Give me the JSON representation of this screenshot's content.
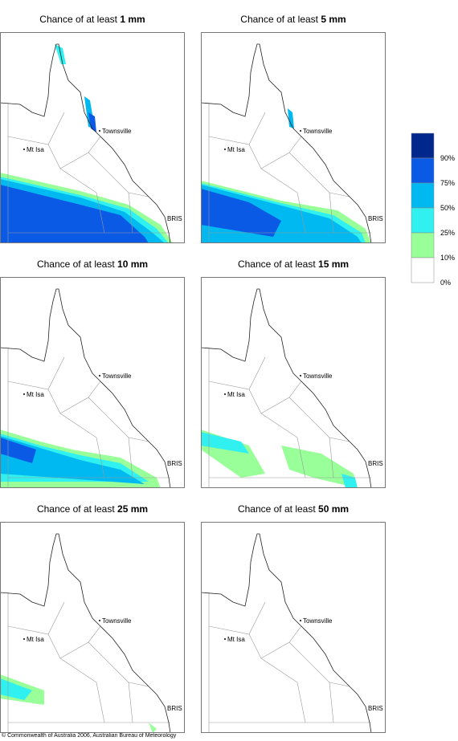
{
  "panels": [
    {
      "title": "Chance of at least",
      "amount": "1 mm"
    },
    {
      "title": "Chance of at least",
      "amount": "5 mm"
    },
    {
      "title": "Chance of at least",
      "amount": "10 mm"
    },
    {
      "title": "Chance of at least",
      "amount": "15 mm"
    },
    {
      "title": "Chance of at least",
      "amount": "25 mm"
    },
    {
      "title": "Chance of at least",
      "amount": "50 mm"
    }
  ],
  "places": {
    "townsville": "Townsville",
    "mt_isa": "Mt Isa",
    "bris": "BRIS"
  },
  "legend": {
    "colors": [
      "#00288c",
      "#0a5ae6",
      "#00b9f0",
      "#30f0f0",
      "#99ff99",
      "#ffffff"
    ],
    "labels": [
      "90%",
      "75%",
      "50%",
      "25%",
      "10%",
      "0%"
    ]
  },
  "credit": "© Commonwealth of Australia 2006, Australian Bureau of Meteorology"
}
